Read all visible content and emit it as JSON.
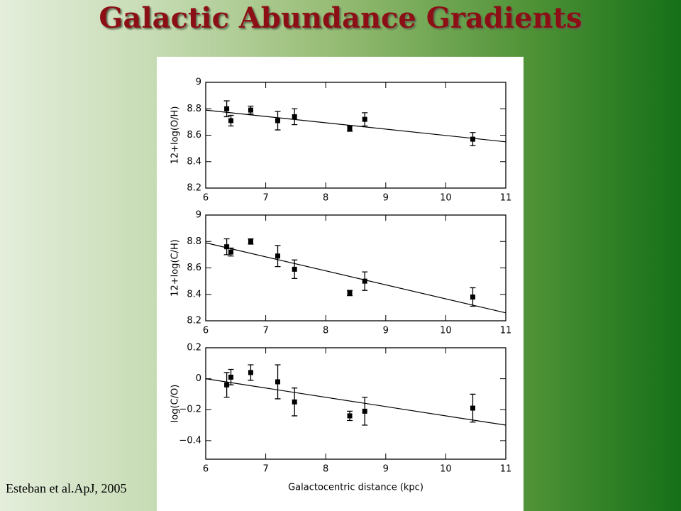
{
  "title": "Galactic Abundance Gradients",
  "citation": "Esteban et al.ApJ, 2005",
  "chart_data": [
    {
      "type": "scatter",
      "y_label": "12+log(O/H)",
      "x": [
        6.35,
        6.42,
        6.75,
        7.2,
        7.48,
        8.4,
        8.65,
        10.45
      ],
      "values": [
        8.8,
        8.71,
        8.79,
        8.71,
        8.74,
        8.65,
        8.72,
        8.57
      ],
      "errors": [
        0.06,
        0.04,
        0.03,
        0.07,
        0.06,
        0.02,
        0.05,
        0.05
      ],
      "fit": {
        "x": [
          6,
          11
        ],
        "values": [
          8.79,
          8.55
        ]
      },
      "xlim": [
        6,
        11
      ],
      "xticks": [
        6,
        7,
        8,
        9,
        10,
        11
      ],
      "ylim": [
        8.2,
        9
      ],
      "yticks": [
        8.2,
        8.4,
        8.6,
        8.8,
        9
      ],
      "color": "#000000"
    },
    {
      "type": "scatter",
      "y_label": "12+log(C/H)",
      "x": [
        6.35,
        6.42,
        6.75,
        7.2,
        7.48,
        8.4,
        8.65,
        10.45
      ],
      "values": [
        8.76,
        8.72,
        8.8,
        8.69,
        8.59,
        8.41,
        8.5,
        8.38
      ],
      "errors": [
        0.06,
        0.03,
        0.02,
        0.08,
        0.07,
        0.02,
        0.07,
        0.07
      ],
      "fit": {
        "x": [
          6,
          11
        ],
        "values": [
          8.79,
          8.26
        ]
      },
      "xlim": [
        6,
        11
      ],
      "xticks": [
        6,
        7,
        8,
        9,
        10,
        11
      ],
      "ylim": [
        8.2,
        9
      ],
      "yticks": [
        8.2,
        8.4,
        8.6,
        8.8,
        9
      ],
      "color": "#000000"
    },
    {
      "type": "scatter",
      "y_label": "log(C/O)",
      "x_label": "Galactocentric distance (kpc)",
      "x": [
        6.35,
        6.42,
        6.75,
        7.2,
        7.48,
        8.4,
        8.65,
        10.45
      ],
      "values": [
        -0.04,
        0.01,
        0.04,
        -0.02,
        -0.15,
        -0.24,
        -0.21,
        -0.19
      ],
      "errors": [
        0.08,
        0.05,
        0.05,
        0.11,
        0.09,
        0.03,
        0.09,
        0.09
      ],
      "fit": {
        "x": [
          6,
          11
        ],
        "values": [
          0,
          -0.3
        ]
      },
      "xlim": [
        6,
        11
      ],
      "xticks": [
        6,
        7,
        8,
        9,
        10,
        11
      ],
      "ylim": [
        -0.52,
        0.2
      ],
      "yticks": [
        {
          "value": -0.4,
          "label": "−0.4"
        },
        {
          "value": -0.2,
          "label": "−0.2"
        },
        0,
        0.2
      ],
      "color": "#000000"
    }
  ]
}
